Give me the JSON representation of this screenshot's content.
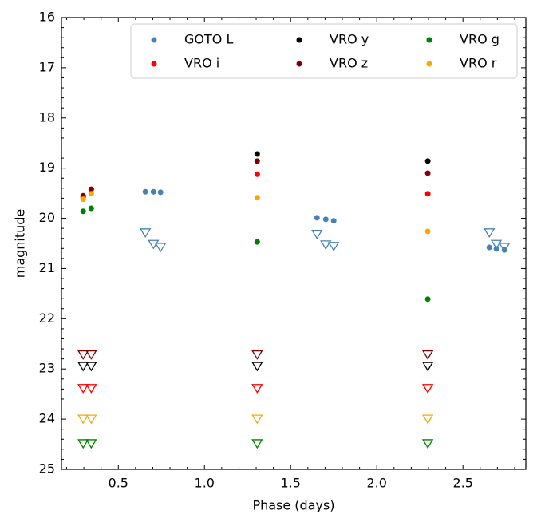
{
  "chart_data": {
    "type": "scatter",
    "xlabel": "Phase (days)",
    "ylabel": "magnitude",
    "xlim": [
      0.17,
      2.865
    ],
    "xticks": [
      0.5,
      {
        "value": 1,
        "label": "1.0"
      },
      1.5,
      {
        "value": 2,
        "label": "2.0"
      },
      2.5
    ],
    "xminor_ticks": [
      0.2,
      0.3,
      0.4,
      0.6,
      0.7,
      0.8,
      0.9,
      1.1,
      1.2,
      1.3,
      1.4,
      1.6,
      1.7,
      1.8,
      1.9,
      2.1,
      2.2,
      2.3,
      2.4,
      2.6,
      2.7,
      2.8
    ],
    "ylim": [
      25,
      16
    ],
    "yticks": [
      16,
      17,
      18,
      19,
      20,
      21,
      22,
      23,
      24,
      25
    ],
    "yminor_ticks": [
      16.2,
      16.4,
      16.6,
      16.8,
      17.2,
      17.4,
      17.6,
      17.8,
      18.2,
      18.4,
      18.6,
      18.8,
      19.2,
      19.4,
      19.6,
      19.8,
      20.2,
      20.4,
      20.6,
      20.8,
      21.2,
      21.4,
      21.6,
      21.8,
      22.2,
      22.4,
      22.6,
      22.8,
      23.2,
      23.4,
      23.6,
      23.8,
      24.2,
      24.4,
      24.6,
      24.8
    ],
    "legend": "upper right",
    "series": [
      {
        "name": "GOTO L",
        "color": "#4682b4",
        "x": [
          0.657,
          0.704,
          0.745,
          1.653,
          1.704,
          1.75,
          2.653,
          2.694,
          2.741
        ],
        "values": [
          19.47,
          19.47,
          19.48,
          19.99,
          20.02,
          20.05,
          20.58,
          20.61,
          20.63
        ],
        "limits": {
          "x": [
            0.657,
            0.704,
            0.745,
            1.653,
            1.704,
            1.75,
            2.653,
            2.694,
            2.741
          ],
          "values": [
            20.29,
            20.52,
            20.58,
            20.32,
            20.53,
            20.56,
            20.29,
            20.52,
            20.58
          ]
        }
      },
      {
        "name": "VRO i",
        "color": "#ff0000",
        "x": [
          0.296,
          1.306,
          2.296
        ],
        "values": [
          19.58,
          19.12,
          19.51
        ],
        "limits": {
          "x": [
            0.296,
            0.343,
            1.306,
            2.296
          ],
          "values": [
            23.39,
            23.39,
            23.39,
            23.39
          ]
        }
      },
      {
        "name": "VRO y",
        "color": "#000000",
        "x": [
          1.306,
          2.296
        ],
        "values": [
          18.72,
          18.86
        ],
        "limits": {
          "x": [
            0.296,
            0.343,
            1.306,
            2.296
          ],
          "values": [
            22.95,
            22.95,
            22.95,
            22.95
          ]
        }
      },
      {
        "name": "VRO z",
        "color": "#800000",
        "x": [
          0.296,
          0.343,
          1.306,
          2.296
        ],
        "values": [
          19.55,
          19.42,
          18.86,
          19.1
        ],
        "limits": {
          "x": [
            0.296,
            0.343,
            1.306,
            2.296
          ],
          "values": [
            22.72,
            22.72,
            22.72,
            22.72
          ]
        }
      },
      {
        "name": "VRO g",
        "color": "#008000",
        "x": [
          0.296,
          0.343,
          1.306,
          2.296
        ],
        "values": [
          19.86,
          19.8,
          20.47,
          21.61
        ],
        "limits": {
          "x": [
            0.296,
            0.343,
            1.306,
            2.296
          ],
          "values": [
            24.49,
            24.49,
            24.49,
            24.49
          ]
        }
      },
      {
        "name": "VRO r",
        "color": "#ffa500",
        "x": [
          0.296,
          0.343,
          1.306,
          2.296
        ],
        "values": [
          19.62,
          19.51,
          19.59,
          20.26
        ],
        "limits": {
          "x": [
            0.296,
            0.343,
            1.306,
            2.296
          ],
          "values": [
            24.0,
            24.0,
            24.0,
            24.0
          ]
        }
      }
    ]
  }
}
